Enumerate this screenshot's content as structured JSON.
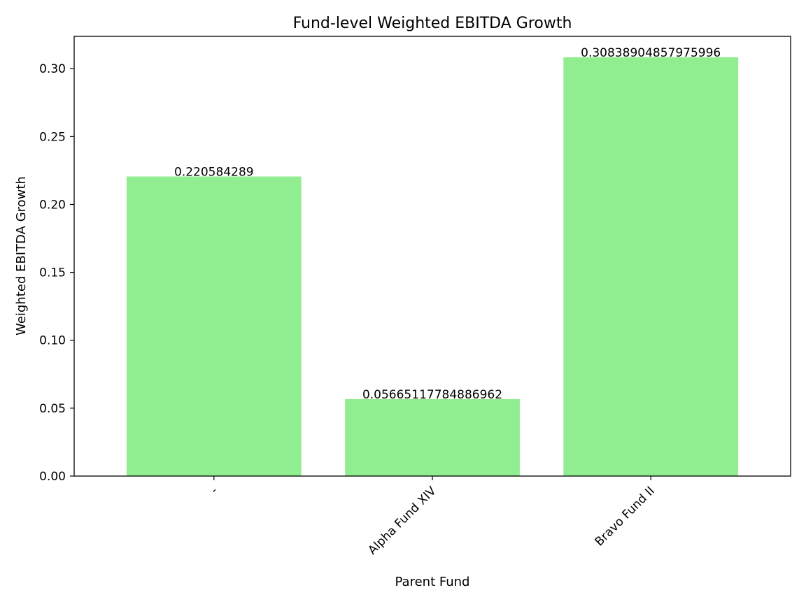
{
  "chart_data": {
    "type": "bar",
    "title": "Fund-level Weighted EBITDA Growth",
    "xlabel": "Parent Fund",
    "ylabel": "Weighted EBITDA Growth",
    "categories": [
      "-",
      "Alpha Fund XIV",
      "Bravo Fund II"
    ],
    "values": [
      0.220584289,
      0.05665117784886962,
      0.30838904857975996
    ],
    "data_labels": [
      "0.220584289",
      "0.05665117784886962",
      "0.30838904857975996"
    ],
    "ylim": [
      0,
      0.3238
    ],
    "yticks": [
      0.0,
      0.05,
      0.1,
      0.15,
      0.2,
      0.25,
      0.3
    ],
    "ytick_labels": [
      "0.00",
      "0.05",
      "0.10",
      "0.15",
      "0.20",
      "0.25",
      "0.30"
    ],
    "bar_color": "#90ee90",
    "grid": false,
    "xtick_rotation": 45
  }
}
